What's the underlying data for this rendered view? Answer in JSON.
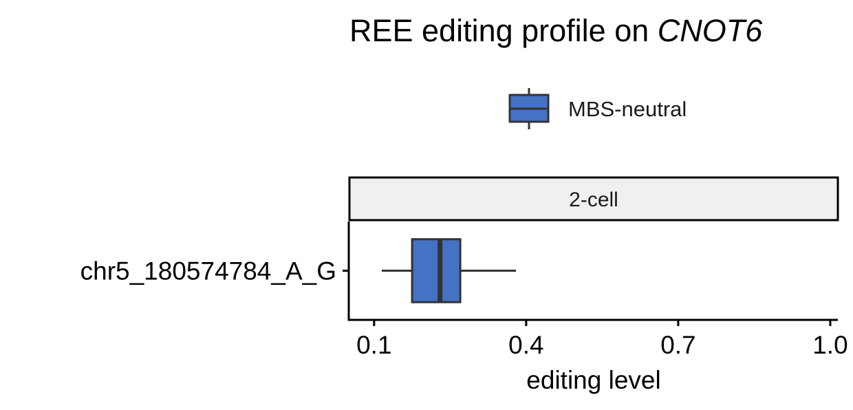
{
  "chart_data": {
    "type": "boxplot",
    "title": {
      "prefix": "REE editing profile on ",
      "gene": "CNOT6"
    },
    "legend": {
      "position": "top",
      "entries": [
        {
          "label": "MBS-neutral",
          "color": "#4472C4"
        }
      ]
    },
    "facet": {
      "label": "2-cell"
    },
    "categories": [
      "chr5_180574784_A_G"
    ],
    "xlabel": "editing level",
    "xlim": [
      0.05,
      1.015
    ],
    "xticks": [
      0.1,
      0.4,
      0.7,
      1.0
    ],
    "xtick_labels": [
      "0.1",
      "0.4",
      "0.7",
      "1.0"
    ],
    "grid": false,
    "series": [
      {
        "name": "MBS-neutral",
        "color": "#4472C4",
        "boxes": [
          {
            "category": "chr5_180574784_A_G",
            "whisker_low": 0.115,
            "q1": 0.175,
            "median": 0.23,
            "q3": 0.27,
            "whisker_high": 0.38
          }
        ]
      }
    ]
  }
}
